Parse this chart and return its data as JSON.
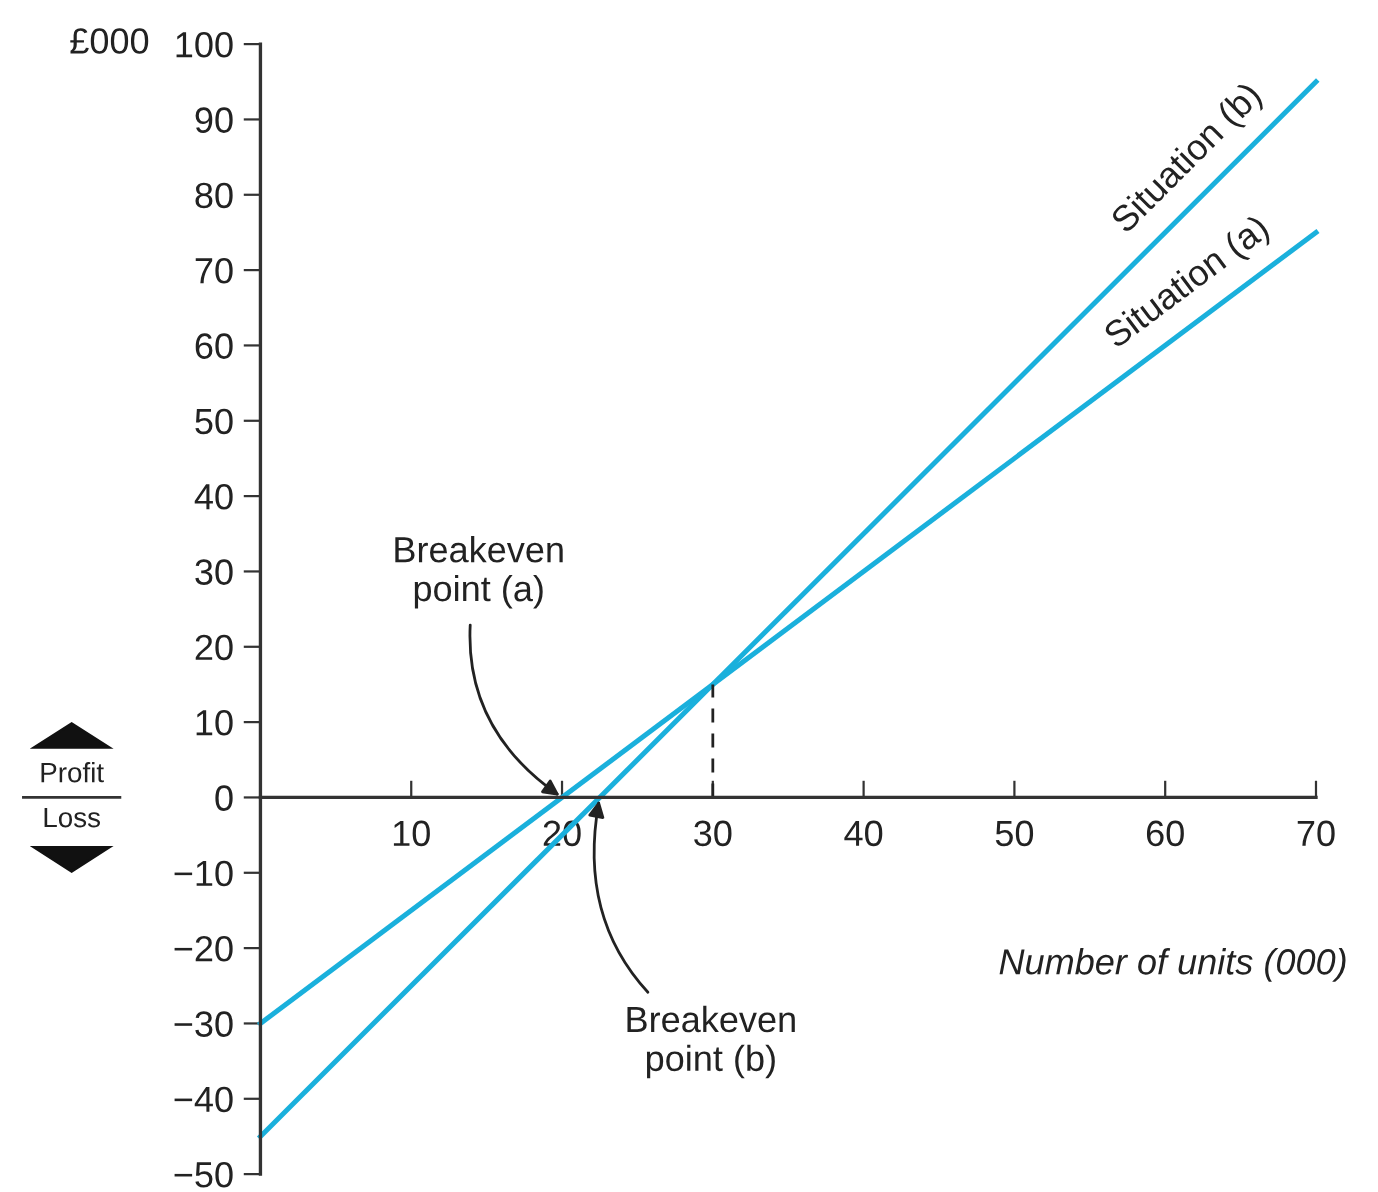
{
  "chart_data": {
    "type": "line",
    "xlabel": "Number of units (000)",
    "ylabel": "£000",
    "xlim": [
      0,
      70
    ],
    "ylim": [
      -50,
      100
    ],
    "xticks": [
      10,
      20,
      30,
      40,
      50,
      60,
      70
    ],
    "yticks": [
      {
        "value": -50,
        "label": "−50"
      },
      {
        "value": -40,
        "label": "−40"
      },
      {
        "value": -30,
        "label": "−30"
      },
      {
        "value": -20,
        "label": "−20"
      },
      {
        "value": -10,
        "label": "−10"
      },
      0,
      10,
      20,
      30,
      40,
      50,
      60,
      70,
      80,
      90,
      100
    ],
    "series": [
      {
        "name": "Situation (a)",
        "color": "#1ab0dc",
        "x": [
          0,
          70
        ],
        "values": [
          -30,
          75
        ]
      },
      {
        "name": "Situation (b)",
        "color": "#1ab0dc",
        "x": [
          0,
          70
        ],
        "values": [
          -45,
          95
        ]
      },
      {
        "color": "#222222",
        "x": [
          30,
          30
        ],
        "values": [
          0,
          15
        ],
        "line_style": "dashed"
      }
    ],
    "annotations": [
      {
        "text": "Breakeven\npoint (a)",
        "x": 20,
        "y": 0
      },
      {
        "text": "Breakeven\npoint (b)",
        "x": 22.5,
        "y": 0
      },
      "Profit",
      "Loss"
    ],
    "grid": false,
    "legend": false,
    "marker": "none"
  }
}
